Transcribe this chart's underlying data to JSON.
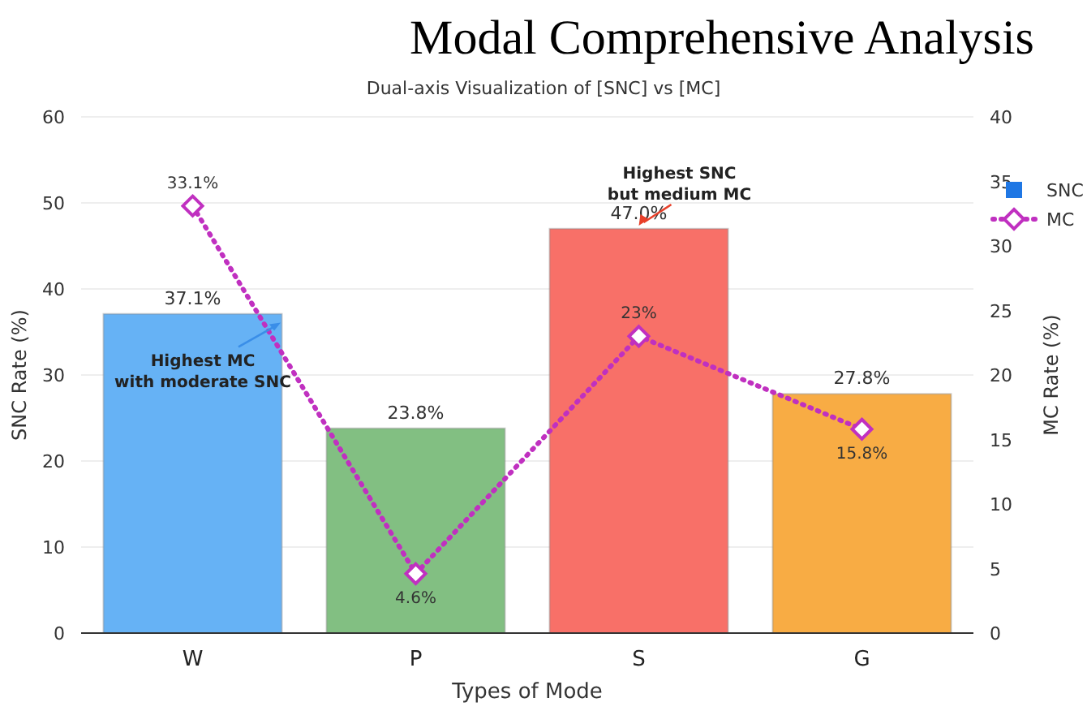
{
  "chart_data": {
    "type": "bar",
    "title": "Modal Comprehensive Analysis",
    "subtitle": "Dual-axis Visualization of [SNC] vs [MC]",
    "xlabel": "Types of Mode",
    "ylabel": "SNC Rate (%)",
    "y2label": "MC Rate (%)",
    "categories": [
      "W",
      "P",
      "S",
      "G"
    ],
    "series": [
      {
        "name": "SNC",
        "color": "#1f77e4",
        "colors": [
          "#66b2f5",
          "#82bf82",
          "#f87068",
          "#f8ac44"
        ],
        "values": [
          37.1,
          23.8,
          47.0,
          27.8
        ],
        "value_labels": [
          "37.1%",
          "23.8%",
          "47.0%",
          "27.8%"
        ]
      },
      {
        "name": "MC",
        "type": "line",
        "axis": "y2",
        "color": "#c030c0",
        "marker": "diamond",
        "line_style": "dotted",
        "values": [
          33.1,
          4.6,
          23,
          15.8
        ],
        "value_labels": [
          "33.1%",
          "4.6%",
          "23%",
          "15.8%"
        ]
      }
    ],
    "ylim": [
      0,
      60
    ],
    "yticks": [
      0,
      10,
      20,
      30,
      40,
      50,
      60
    ],
    "y2lim": [
      0,
      40
    ],
    "y2ticks": [
      0,
      5,
      10,
      15,
      20,
      25,
      30,
      35,
      40
    ],
    "grid": "y",
    "legend": "top right",
    "annotations": [
      "Highest MC\nwith moderate SNC",
      "Highest SNC\nbut medium MC"
    ]
  }
}
